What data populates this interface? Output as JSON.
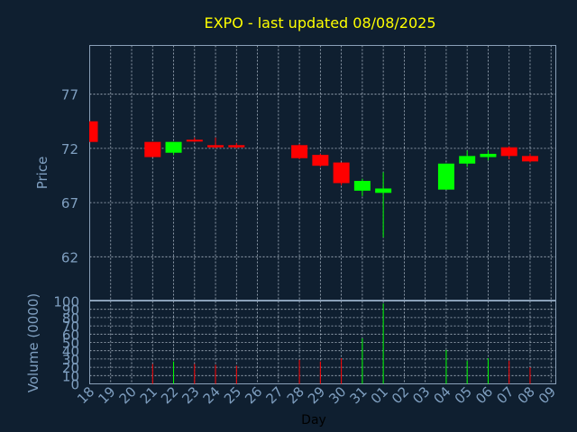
{
  "title": "EXPO - last updated 08/08/2025",
  "colors": {
    "background": "#0f1f30",
    "plot_border": "#8aa0b8",
    "grid": "#c8d4e0",
    "title": "#ffff00",
    "axis_text": "#7f9fc0",
    "xlabel_text": "#000000",
    "up": "#00ff00",
    "down": "#ff0000"
  },
  "chart_data": [
    {
      "type": "candlestick",
      "ylabel": "Price",
      "ylim": [
        58,
        81.5
      ],
      "yticks": [
        62,
        67,
        72,
        77
      ],
      "grid": true,
      "candles": [
        {
          "day": "18",
          "open": 74.5,
          "close": 72.6,
          "high": 74.5,
          "low": 72.6
        },
        {
          "day": "21",
          "open": 72.6,
          "close": 71.2,
          "high": 72.6,
          "low": 71.2
        },
        {
          "day": "22",
          "open": 71.6,
          "close": 72.6,
          "high": 72.6,
          "low": 71.4
        },
        {
          "day": "23",
          "open": 72.8,
          "close": 72.7,
          "high": 73.0,
          "low": 72.6
        },
        {
          "day": "24",
          "open": 72.3,
          "close": 72.1,
          "high": 73.0,
          "low": 72.0
        },
        {
          "day": "25",
          "open": 72.3,
          "close": 72.1,
          "high": 72.5,
          "low": 72.0
        },
        {
          "day": "28",
          "open": 72.3,
          "close": 71.1,
          "high": 72.4,
          "low": 71.0
        },
        {
          "day": "29",
          "open": 71.4,
          "close": 70.4,
          "high": 71.5,
          "low": 70.3
        },
        {
          "day": "30",
          "open": 70.7,
          "close": 68.8,
          "high": 70.7,
          "low": 68.6
        },
        {
          "day": "31",
          "open": 68.1,
          "close": 69.0,
          "high": 69.2,
          "low": 67.6
        },
        {
          "day": "01",
          "open": 67.9,
          "close": 68.3,
          "high": 69.8,
          "low": 63.8
        },
        {
          "day": "04",
          "open": 68.2,
          "close": 70.6,
          "high": 70.6,
          "low": 68.2
        },
        {
          "day": "05",
          "open": 70.6,
          "close": 71.3,
          "high": 71.8,
          "low": 70.3
        },
        {
          "day": "06",
          "open": 71.2,
          "close": 71.5,
          "high": 71.8,
          "low": 70.9
        },
        {
          "day": "07",
          "open": 72.1,
          "close": 71.3,
          "high": 72.2,
          "low": 71.0
        },
        {
          "day": "08",
          "open": 71.3,
          "close": 70.8,
          "high": 71.5,
          "low": 70.7
        }
      ]
    },
    {
      "type": "bar",
      "ylabel": "Volume (0000)",
      "xlabel": "Day",
      "ylim": [
        0,
        100
      ],
      "yticks": [
        0,
        10,
        20,
        30,
        40,
        50,
        60,
        70,
        80,
        90,
        100
      ],
      "grid": true,
      "categories": [
        "18",
        "19",
        "20",
        "21",
        "22",
        "23",
        "24",
        "25",
        "26",
        "27",
        "28",
        "29",
        "30",
        "31",
        "01",
        "02",
        "03",
        "04",
        "05",
        "06",
        "07",
        "08",
        "09"
      ],
      "volumes": [
        {
          "day": "21",
          "value": 24,
          "direction": "down"
        },
        {
          "day": "22",
          "value": 27,
          "direction": "up"
        },
        {
          "day": "23",
          "value": 24,
          "direction": "down"
        },
        {
          "day": "24",
          "value": 23,
          "direction": "down"
        },
        {
          "day": "25",
          "value": 22,
          "direction": "down"
        },
        {
          "day": "28",
          "value": 29,
          "direction": "down"
        },
        {
          "day": "29",
          "value": 27,
          "direction": "down"
        },
        {
          "day": "30",
          "value": 31,
          "direction": "down"
        },
        {
          "day": "31",
          "value": 55,
          "direction": "up"
        },
        {
          "day": "01",
          "value": 97,
          "direction": "up"
        },
        {
          "day": "04",
          "value": 41,
          "direction": "up"
        },
        {
          "day": "05",
          "value": 28,
          "direction": "up"
        },
        {
          "day": "06",
          "value": 31,
          "direction": "up"
        },
        {
          "day": "07",
          "value": 28,
          "direction": "down"
        },
        {
          "day": "08",
          "value": 20,
          "direction": "down"
        }
      ]
    }
  ]
}
